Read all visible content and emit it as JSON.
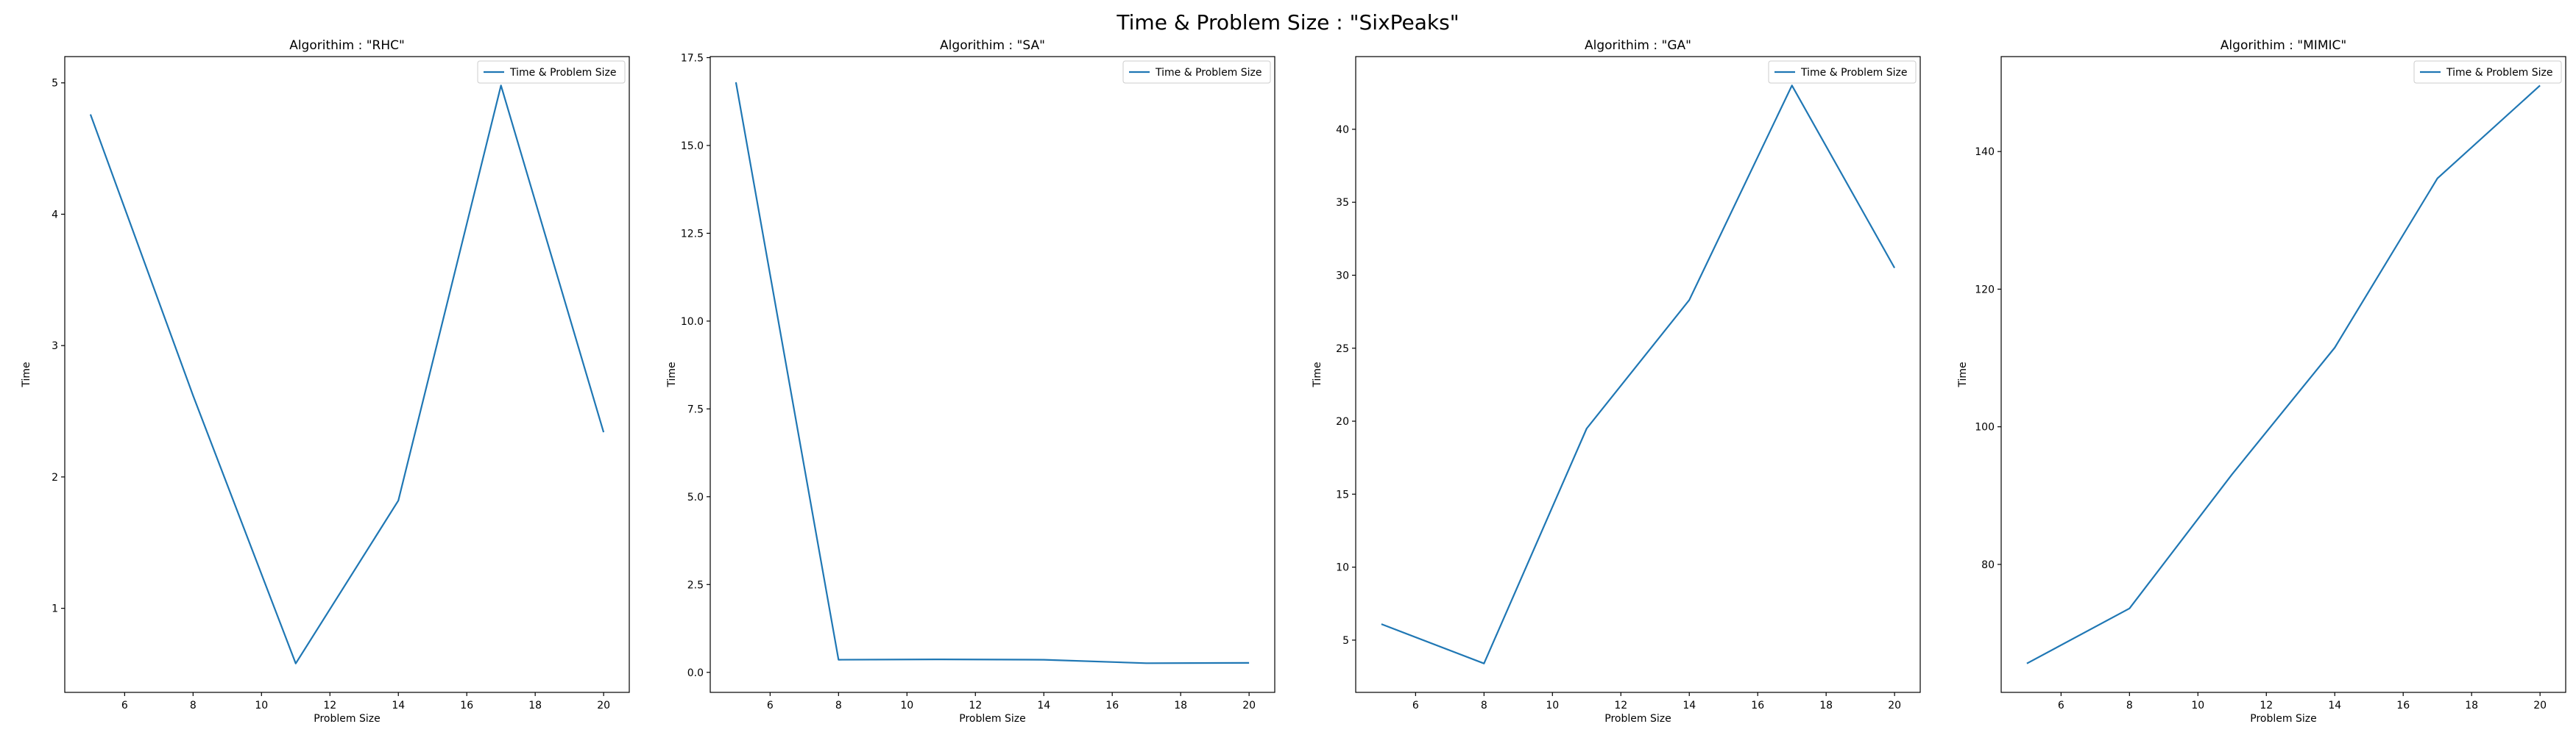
{
  "figure": {
    "suptitle": "Time & Problem Size : \"SixPeaks\""
  },
  "chart_data": [
    {
      "type": "line",
      "title": "Algorithim : \"RHC\"",
      "xlabel": "Problem Size",
      "ylabel": "Time",
      "x": [
        5,
        8,
        11,
        14,
        17,
        20
      ],
      "series": [
        {
          "name": "Time & Problem Size",
          "values": [
            4.76,
            2.62,
            0.58,
            1.82,
            4.98,
            2.34
          ],
          "color": "#1f77b4"
        }
      ],
      "xlim": [
        4.25,
        20.75
      ],
      "ylim": [
        0.36,
        5.2
      ],
      "xticks": [
        6,
        8,
        10,
        12,
        14,
        16,
        18,
        20
      ],
      "yticks": [
        1,
        2,
        3,
        4,
        5
      ],
      "ytick_labels": [
        "1",
        "2",
        "3",
        "4",
        "5"
      ],
      "grid": false,
      "legend": "upper right"
    },
    {
      "type": "line",
      "title": "Algorithim : \"SA\"",
      "xlabel": "Problem Size",
      "ylabel": "Time",
      "x": [
        5,
        8,
        11,
        14,
        17,
        20
      ],
      "series": [
        {
          "name": "Time & Problem Size",
          "values": [
            16.8,
            0.36,
            0.37,
            0.36,
            0.26,
            0.27
          ],
          "color": "#1f77b4"
        }
      ],
      "xlim": [
        4.25,
        20.75
      ],
      "ylim": [
        -0.57,
        17.53
      ],
      "xticks": [
        6,
        8,
        10,
        12,
        14,
        16,
        18,
        20
      ],
      "yticks": [
        0,
        2.5,
        5,
        7.5,
        10,
        12.5,
        15,
        17.5
      ],
      "ytick_labels": [
        "0.0",
        "2.5",
        "5.0",
        "7.5",
        "10.0",
        "12.5",
        "15.0",
        "17.5"
      ],
      "grid": false,
      "legend": "upper right"
    },
    {
      "type": "line",
      "title": "Algorithim : \"GA\"",
      "xlabel": "Problem Size",
      "ylabel": "Time",
      "x": [
        5,
        8,
        11,
        14,
        17,
        20
      ],
      "series": [
        {
          "name": "Time & Problem Size",
          "values": [
            6.1,
            3.4,
            19.5,
            28.3,
            43.0,
            30.5
          ],
          "color": "#1f77b4"
        }
      ],
      "xlim": [
        4.25,
        20.75
      ],
      "ylim": [
        1.42,
        44.98
      ],
      "xticks": [
        6,
        8,
        10,
        12,
        14,
        16,
        18,
        20
      ],
      "yticks": [
        5,
        10,
        15,
        20,
        25,
        30,
        35,
        40
      ],
      "ytick_labels": [
        "5",
        "10",
        "15",
        "20",
        "25",
        "30",
        "35",
        "40"
      ],
      "grid": false,
      "legend": "upper right"
    },
    {
      "type": "line",
      "title": "Algorithim : \"MIMIC\"",
      "xlabel": "Problem Size",
      "ylabel": "Time",
      "x": [
        5,
        8,
        11,
        14,
        17,
        20
      ],
      "series": [
        {
          "name": "Time & Problem Size",
          "values": [
            65.6,
            73.6,
            93.1,
            111.5,
            136.1,
            149.6
          ],
          "color": "#1f77b4"
        }
      ],
      "xlim": [
        4.25,
        20.75
      ],
      "ylim": [
        61.4,
        153.8
      ],
      "xticks": [
        6,
        8,
        10,
        12,
        14,
        16,
        18,
        20
      ],
      "yticks": [
        80,
        100,
        120,
        140
      ],
      "ytick_labels": [
        "80",
        "100",
        "120",
        "140"
      ],
      "grid": false,
      "legend": "upper right"
    }
  ]
}
